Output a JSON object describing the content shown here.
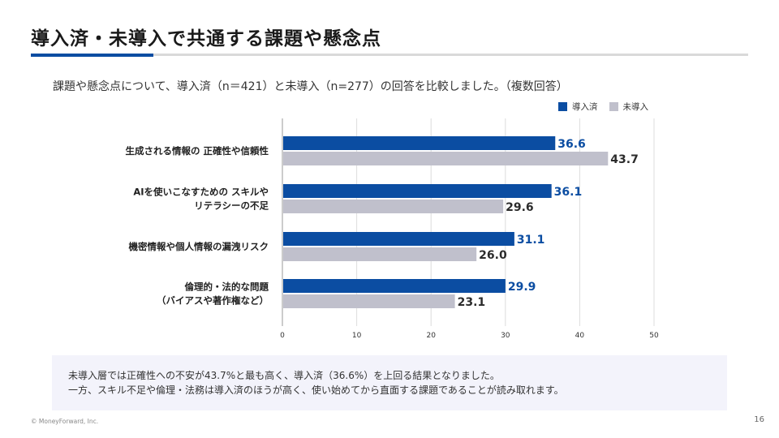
{
  "slide": {
    "title": "導入済・未導入で共通する課題や懸念点",
    "subtitle": "課題や懸念点について、導入済（n＝421）と未導入（n=277）の回答を比較しました。（複数回答）",
    "note_line1": "未導入層では正確性への不安が43.7%と最も高く、導入済（36.6%）を上回る結果となりました。",
    "note_line2": "一方、スキル不足や倫理・法務は導入済のほうが高く、使い始めてから直面する課題であることが読み取れます。",
    "footer": "© MoneyForward, Inc.",
    "page_number": "16"
  },
  "colors": {
    "accent": "#0b4da2",
    "series_1": "#0b4da2",
    "series_2": "#c0c0cc"
  },
  "chart_data": {
    "type": "bar",
    "orientation": "horizontal",
    "categories": [
      [
        "生成される情報の 正確性や信頼性"
      ],
      [
        "AIを使いこなすための スキルや",
        "リテラシーの不足"
      ],
      [
        "機密情報や個人情報の漏洩リスク"
      ],
      [
        "倫理的・法的な問題",
        "（バイアスや著作権など）"
      ]
    ],
    "series": [
      {
        "name": "導入済",
        "values": [
          36.6,
          36.1,
          31.1,
          29.9
        ]
      },
      {
        "name": "未導入",
        "values": [
          43.7,
          29.6,
          26.0,
          23.1
        ]
      }
    ],
    "xlim": [
      0,
      50
    ],
    "xticks": [
      "0",
      "10",
      "20",
      "30",
      "40",
      "50"
    ],
    "grid": true,
    "legend": "top-right"
  }
}
